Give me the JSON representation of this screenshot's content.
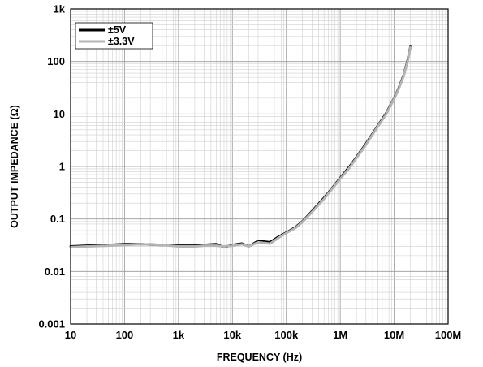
{
  "chart_data": {
    "type": "line",
    "xlabel": "FREQUENCY (Hz)",
    "ylabel": "OUTPUT IMPEDANCE (Ω)",
    "x_scale": "log",
    "y_scale": "log",
    "xlim": [
      10,
      100000000
    ],
    "ylim": [
      0.001,
      1000
    ],
    "grid": true,
    "legend_position": "top-left",
    "x_tick_values": [
      10,
      100,
      1000,
      10000,
      100000,
      1000000,
      10000000,
      100000000
    ],
    "x_tick_labels": [
      "10",
      "100",
      "1k",
      "10k",
      "100k",
      "1M",
      "10M",
      "100M"
    ],
    "y_tick_values": [
      0.001,
      0.01,
      0.1,
      1,
      10,
      100,
      1000
    ],
    "y_tick_labels": [
      "0.001",
      "0.01",
      "0.1",
      "1",
      "10",
      "100",
      "1k"
    ],
    "series": [
      {
        "name": "±5V",
        "color": "#000000",
        "x": [
          10,
          20,
          50,
          100,
          200,
          500,
          1000,
          2000,
          3000,
          5000,
          7000,
          10000,
          15000,
          20000,
          30000,
          50000,
          70000,
          100000,
          150000,
          200000,
          300000,
          500000,
          700000,
          1000000,
          1500000,
          2000000,
          3000000,
          5000000,
          7000000,
          10000000,
          12000000,
          15000000,
          18000000,
          20000000
        ],
        "y": [
          0.03,
          0.031,
          0.032,
          0.033,
          0.033,
          0.032,
          0.031,
          0.031,
          0.032,
          0.033,
          0.029,
          0.032,
          0.034,
          0.03,
          0.038,
          0.036,
          0.045,
          0.055,
          0.07,
          0.09,
          0.14,
          0.25,
          0.38,
          0.6,
          1.0,
          1.5,
          2.7,
          6.0,
          10.0,
          20.0,
          30.0,
          55.0,
          110.0,
          190.0
        ]
      },
      {
        "name": "±3.3V",
        "color": "#b4b4b4",
        "x": [
          10,
          20,
          50,
          100,
          200,
          500,
          1000,
          2000,
          3000,
          5000,
          7000,
          10000,
          15000,
          20000,
          30000,
          50000,
          70000,
          100000,
          150000,
          200000,
          300000,
          500000,
          700000,
          1000000,
          1500000,
          2000000,
          3000000,
          5000000,
          7000000,
          10000000,
          12000000,
          15000000,
          18000000,
          20000000
        ],
        "y": [
          0.029,
          0.03,
          0.031,
          0.032,
          0.033,
          0.032,
          0.03,
          0.03,
          0.031,
          0.031,
          0.03,
          0.031,
          0.033,
          0.03,
          0.036,
          0.034,
          0.043,
          0.054,
          0.068,
          0.088,
          0.135,
          0.24,
          0.37,
          0.58,
          0.95,
          1.45,
          2.6,
          5.8,
          9.6,
          19.5,
          29.0,
          53.0,
          105.0,
          185.0
        ]
      }
    ]
  }
}
